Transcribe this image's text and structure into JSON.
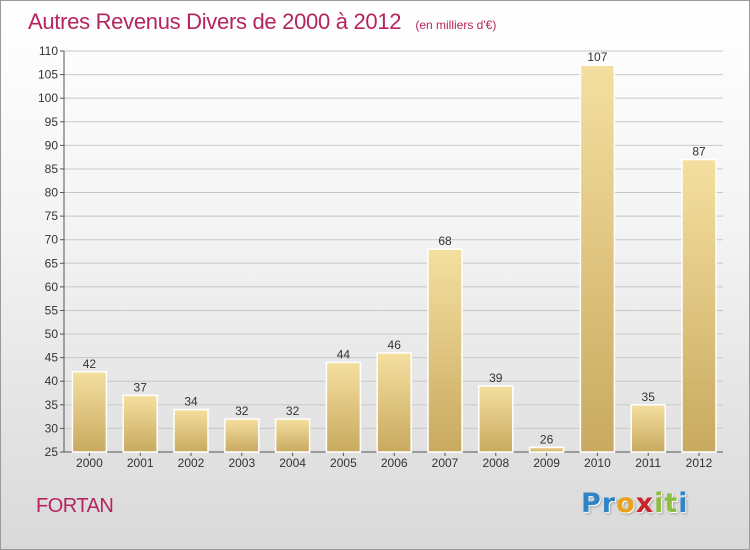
{
  "title": "Autres Revenus Divers de 2000 à 2012",
  "subtitle": "(en milliers d'€)",
  "commune": "FORTAN",
  "brand": {
    "letters": [
      "P",
      "r",
      "o",
      "x",
      "i",
      "t",
      "i"
    ],
    "colors": [
      "#2f84c6",
      "#2f84c6",
      "#e8a21d",
      "#c9252c",
      "#8cbf3f",
      "#8cbf3f",
      "#2f84c6"
    ]
  },
  "colors": {
    "title": "#b5245e",
    "bar_light": "#f5dfa0",
    "bar_dark": "#c8aa5f",
    "bar_edge": "#ffffff",
    "grid": "#c7c7c7"
  },
  "chart_data": {
    "type": "bar",
    "title": "Autres Revenus Divers de 2000 à 2012",
    "subtitle": "(en milliers d'€)",
    "xlabel": "",
    "ylabel": "",
    "categories": [
      "2000",
      "2001",
      "2002",
      "2003",
      "2004",
      "2005",
      "2006",
      "2007",
      "2008",
      "2009",
      "2010",
      "2011",
      "2012"
    ],
    "values": [
      42,
      37,
      34,
      32,
      32,
      44,
      46,
      68,
      39,
      26,
      107,
      35,
      87
    ],
    "data_labels": [
      "42",
      "37",
      "34",
      "32",
      "32",
      "44",
      "46",
      "68",
      "39",
      "26",
      "107",
      "35",
      "87"
    ],
    "ylim": [
      25,
      110
    ],
    "yticks": [
      25,
      30,
      35,
      40,
      45,
      50,
      55,
      60,
      65,
      70,
      75,
      80,
      85,
      90,
      95,
      100,
      105,
      110
    ],
    "grid": true,
    "legend": "none"
  }
}
